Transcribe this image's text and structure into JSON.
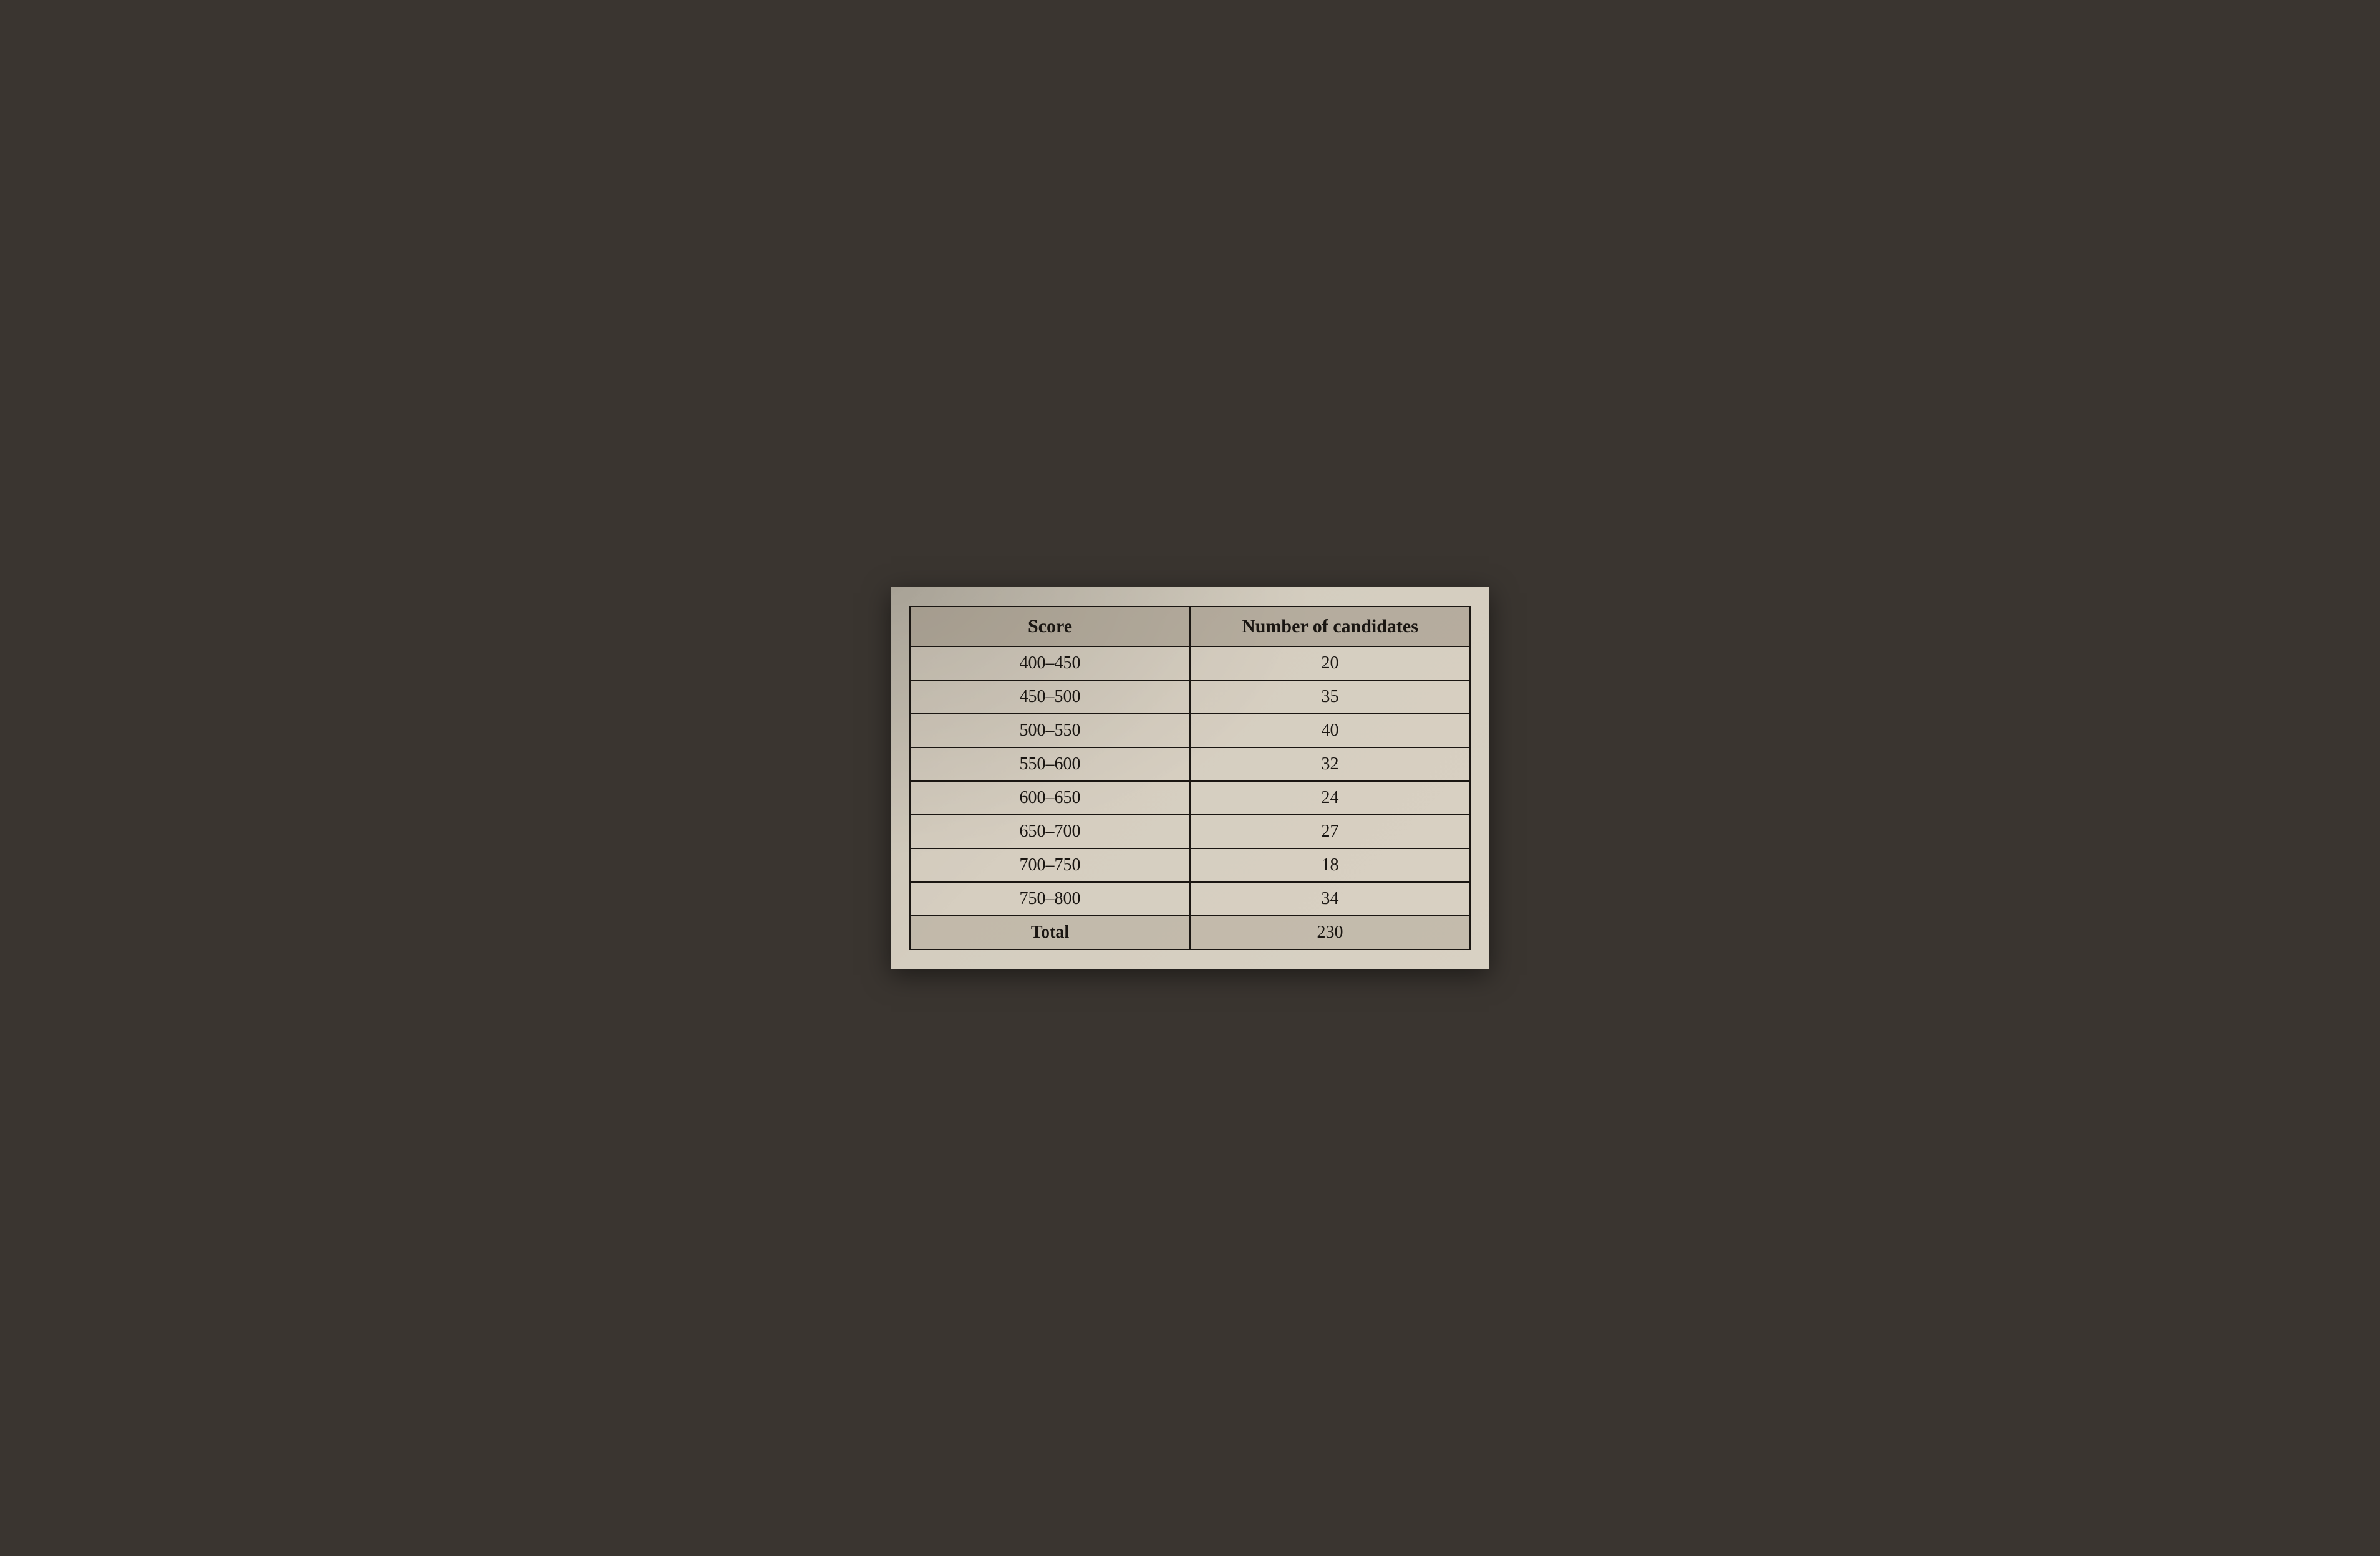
{
  "table": {
    "type": "table",
    "columns": [
      {
        "label": "Score",
        "align": "center"
      },
      {
        "label": "Number of candidates",
        "align": "center"
      }
    ],
    "rows": [
      {
        "label": "400–450",
        "value": "20"
      },
      {
        "label": "450–500",
        "value": "35"
      },
      {
        "label": "500–550",
        "value": "40"
      },
      {
        "label": "550–600",
        "value": "32"
      },
      {
        "label": "600–650",
        "value": "24"
      },
      {
        "label": "650–700",
        "value": "27"
      },
      {
        "label": "700–750",
        "value": "18"
      },
      {
        "label": "750–800",
        "value": "34"
      }
    ],
    "total": {
      "label": "Total",
      "value": "230"
    },
    "styling": {
      "border_color": "#1a1612",
      "border_width": 2,
      "header_bg": "#a09687",
      "row_bg": "#dad2c3",
      "total_bg": "#afa596",
      "text_color": "#1a1612",
      "font_family": "Georgia, serif",
      "header_fontsize": 30,
      "cell_fontsize": 28,
      "page_bg": "#d4cdbf"
    }
  }
}
